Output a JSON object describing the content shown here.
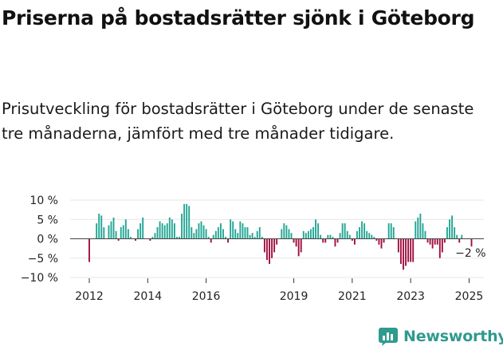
{
  "header": {
    "title": "Priserna på bostadsrätter sjönk i Göteborg",
    "subtitle": "Prisutveckling för bostadsrätter i Göteborg under de senaste tre månaderna, jämfört med tre månader tidigare."
  },
  "brand": {
    "name": "Newsworthy",
    "logo_icon": "bar-chart-speech-bubble-icon",
    "color": "#2f9a8e"
  },
  "chart_data": {
    "type": "bar",
    "title": "Priserna på bostadsrätter sjönk i Göteborg",
    "subtitle": "Prisutveckling för bostadsrätter i Göteborg under de senaste tre månaderna, jämfört med tre månader tidigare.",
    "xlabel": "",
    "ylabel": "",
    "unit": "%",
    "ylim": [
      -10,
      10
    ],
    "yticks": [
      10,
      5,
      0,
      -5,
      -10
    ],
    "ytick_labels": [
      "10 %",
      "5 %",
      "0 %",
      "−5 %",
      "−10 %"
    ],
    "xticks": [
      "2012",
      "2014",
      "2016",
      "2019",
      "2021",
      "2023",
      "2025"
    ],
    "x_start": "2012-01",
    "grid": true,
    "colors": {
      "positive": "#22a594",
      "negative": "#a00f3f",
      "grid": "#e6e6e6",
      "zero_line": "#444444"
    },
    "annotation": {
      "label": "−2 %",
      "value": -2
    },
    "values": [
      -6,
      0,
      0,
      4,
      6.5,
      6,
      3,
      0,
      3.5,
      4.5,
      5.5,
      2,
      -0.5,
      3,
      3.5,
      5,
      2.5,
      0.5,
      0,
      -0.5,
      2.5,
      4,
      5.5,
      0,
      0,
      -0.5,
      0.5,
      1.5,
      3,
      4.5,
      4,
      3.5,
      4,
      5.5,
      5,
      4,
      0.5,
      0.5,
      6.5,
      9,
      9,
      8.5,
      3,
      1.5,
      2.5,
      4,
      4.5,
      3.5,
      2.5,
      0.5,
      -1,
      1,
      2,
      3,
      4,
      2.5,
      0.5,
      -1,
      5,
      4.5,
      2.5,
      1.5,
      4.5,
      4,
      3,
      3,
      1,
      1.5,
      0.5,
      2,
      3,
      0.5,
      -3.5,
      -5.5,
      -6.5,
      -5,
      -3.5,
      -1.5,
      0,
      2.5,
      4,
      3.5,
      2.5,
      1.5,
      -1,
      -2,
      -4.5,
      -3.5,
      2,
      1.5,
      2,
      2.5,
      3,
      5,
      4,
      1,
      -1,
      -1,
      1,
      1,
      0.5,
      -2,
      -1,
      1.5,
      4,
      4,
      2,
      1,
      -0.5,
      -1.5,
      2,
      3,
      4.5,
      4,
      2,
      1.5,
      1,
      0.5,
      -0.5,
      -1.5,
      -2.5,
      -1,
      0,
      4,
      4,
      3,
      0,
      -3.5,
      -6.5,
      -8,
      -7,
      -6,
      -6,
      -6,
      4.5,
      5.5,
      6.5,
      4,
      2,
      -1,
      -1.5,
      -2.5,
      -1.5,
      -1.5,
      -5,
      -3.5,
      -1,
      3,
      5,
      6,
      3,
      1,
      -1,
      1,
      0,
      0,
      0,
      -2
    ]
  }
}
